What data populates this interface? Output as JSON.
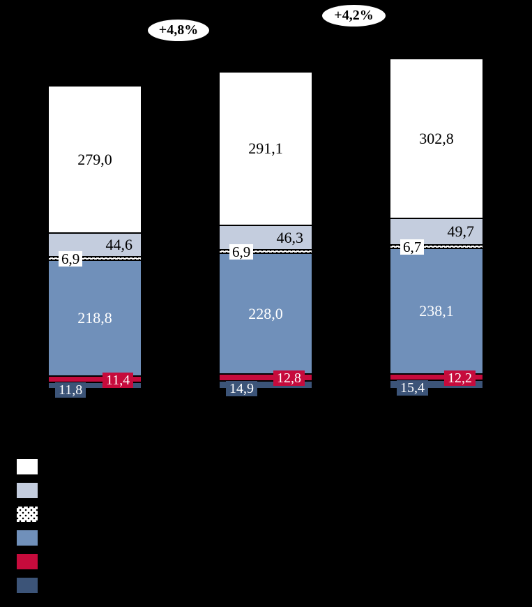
{
  "page": {
    "background": "#000000"
  },
  "chart_data": {
    "type": "bar",
    "stacked": true,
    "grid": false,
    "background": "#000000",
    "categories": [
      "",
      "",
      ""
    ],
    "series": [
      {
        "name": "segment-white",
        "color": "#ffffff",
        "pattern": "none",
        "label_color": "#000000",
        "values": [
          279.0,
          291.1,
          302.8
        ],
        "labels": [
          "279,0",
          "291,1",
          "302,8"
        ]
      },
      {
        "name": "segment-light-blue",
        "color": "#c4cdde",
        "pattern": "none",
        "label_color": "#000000",
        "values": [
          44.6,
          46.3,
          49.7
        ],
        "labels": [
          "44,6",
          "46,3",
          "49,7"
        ]
      },
      {
        "name": "segment-dotted",
        "color": "#ffffff",
        "pattern": "black-dots",
        "label_color": "#000000",
        "values": [
          6.9,
          6.9,
          6.7
        ],
        "labels": [
          "6,9",
          "6,9",
          "6,7"
        ]
      },
      {
        "name": "segment-medium-blue",
        "color": "#7090ba",
        "pattern": "none",
        "label_color": "#ffffff",
        "values": [
          218.8,
          228.0,
          238.1
        ],
        "labels": [
          "218,8",
          "228,0",
          "238,1"
        ]
      },
      {
        "name": "segment-red",
        "color": "#c60b3c",
        "pattern": "none",
        "label_color": "#ffffff",
        "values": [
          11.4,
          12.8,
          12.2
        ],
        "labels": [
          "11,4",
          "12,8",
          "12,2"
        ]
      },
      {
        "name": "segment-dark-blue",
        "color": "#3c5478",
        "pattern": "none",
        "label_color": "#ffffff",
        "values": [
          11.8,
          14.9,
          15.4
        ],
        "labels": [
          "11,8",
          "14,9",
          "15,4"
        ]
      }
    ],
    "annotations": [
      {
        "text": "+4,8%",
        "between_bars": [
          1,
          2
        ]
      },
      {
        "text": "+4,2%",
        "between_bars": [
          2,
          3
        ]
      }
    ],
    "legend": {
      "position": "bottom-left",
      "items": [
        {
          "swatch": "white-solid"
        },
        {
          "swatch": "light-blue"
        },
        {
          "swatch": "dotted"
        },
        {
          "swatch": "medium-blue"
        },
        {
          "swatch": "red"
        },
        {
          "swatch": "dark-blue"
        }
      ]
    }
  }
}
